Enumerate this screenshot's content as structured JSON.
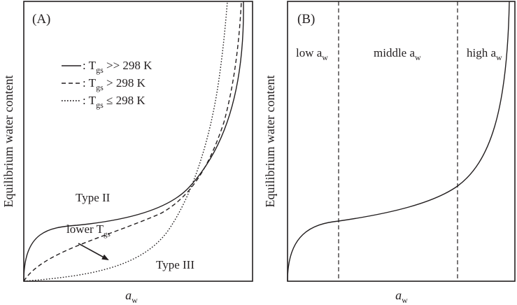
{
  "panel_a": {
    "label": "(A)",
    "y_label": "Equilibrium water content",
    "x_label": {
      "main": "a",
      "sub": "w"
    },
    "legend": [
      {
        "style": "solid",
        "prefix": ": T",
        "sub": "gs",
        "suffix": " >> 298 K"
      },
      {
        "style": "dashed",
        "prefix": ": T",
        "sub": "gs",
        "suffix": " > 298 K"
      },
      {
        "style": "dotted",
        "prefix": ": T",
        "sub": "gs",
        "suffix": " ≤ 298 K"
      }
    ],
    "type2_label": "Type II",
    "type3_label": "Type III",
    "arrow_label": {
      "main": "lower T",
      "sub": "gs"
    }
  },
  "panel_b": {
    "label": "(B)",
    "y_label": "Equilibrium water content",
    "x_label": {
      "main": "a",
      "sub": "w"
    },
    "regions": [
      {
        "main": "low a",
        "sub": "w"
      },
      {
        "main": "middle a",
        "sub": "w"
      },
      {
        "main": "high a",
        "sub": "w"
      }
    ]
  }
}
